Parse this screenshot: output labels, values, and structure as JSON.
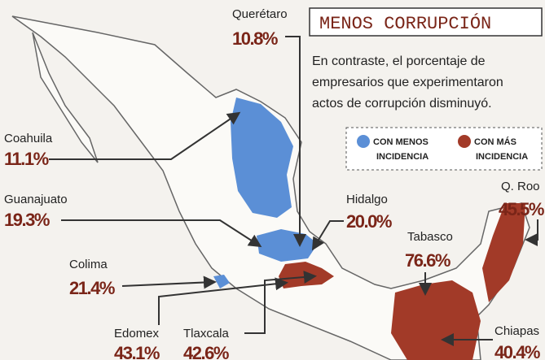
{
  "header": {
    "title": "MENOS CORRUPCIÓN",
    "description": [
      "En contraste, el porcentaje de",
      "empresarios que experimentaron",
      "actos de corrupción disminuyó."
    ]
  },
  "legend": [
    {
      "lines": [
        "CON MENOS",
        "INCIDENCIA"
      ]
    },
    {
      "lines": [
        "CON MÁS",
        "INCIDENCIA"
      ]
    }
  ],
  "states": [
    {
      "name": "Querétaro",
      "value": "10.8%"
    },
    {
      "name": "Coahuila",
      "value": "11.1%"
    },
    {
      "name": "Guanajuato",
      "value": "19.3%"
    },
    {
      "name": "Colima",
      "value": "21.4%"
    },
    {
      "name": "Edomex",
      "value": "43.1%"
    },
    {
      "name": "Tlaxcala",
      "value": "42.6%"
    },
    {
      "name": "Hidalgo",
      "value": "20.0%"
    },
    {
      "name": "Tabasco",
      "value": "76.6%"
    },
    {
      "name": "Q. Roo",
      "value": "45.5%"
    },
    {
      "name": "Chiapas",
      "value": "40.4%"
    }
  ]
}
